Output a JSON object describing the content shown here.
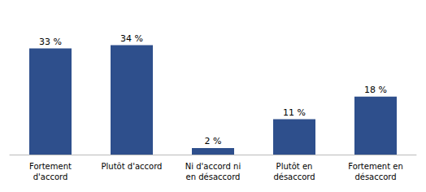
{
  "chart_data": {
    "type": "bar",
    "categories": [
      "Fortement\nd'accord",
      "Plutôt d'accord",
      "Ni d'accord ni\nen désaccord",
      "Plutôt en\ndésaccord",
      "Fortement en\ndésaccord"
    ],
    "values": [
      33,
      34,
      2,
      11,
      18
    ],
    "value_labels": [
      "33 %",
      "34 %",
      "2 %",
      "11 %",
      "18 %"
    ],
    "color": "#2e4f8c",
    "ylim": [
      0,
      42
    ],
    "grid": false,
    "data_labels": true,
    "tick_labels": "x"
  }
}
